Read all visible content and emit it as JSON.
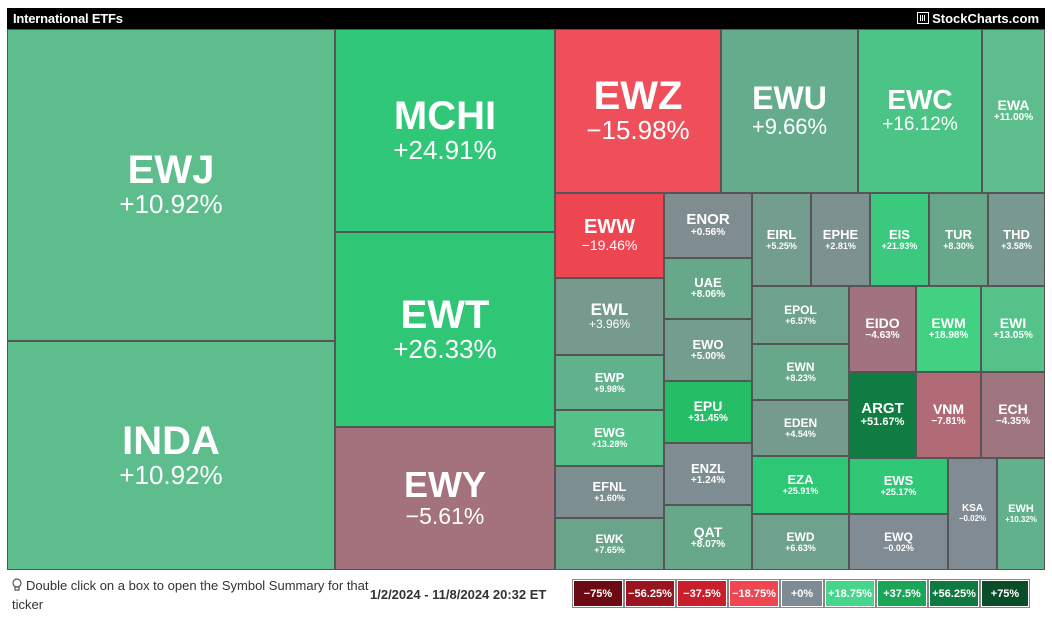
{
  "header": {
    "title": "International ETFs",
    "brand": "StockCharts.com"
  },
  "footer": {
    "hint": "Double click on a box to open the Symbol Summary for that ticker",
    "date_range": "1/2/2024 - 11/8/2024 20:32 ET"
  },
  "legend": [
    {
      "label": "−75%",
      "color": "#6b0a12"
    },
    {
      "label": "−56.25%",
      "color": "#9a1320"
    },
    {
      "label": "−37.5%",
      "color": "#c91f2c"
    },
    {
      "label": "−18.75%",
      "color": "#ef4652"
    },
    {
      "label": "+0%",
      "color": "#7f8b94"
    },
    {
      "label": "+18.75%",
      "color": "#45d68c"
    },
    {
      "label": "+37.5%",
      "color": "#1aa559"
    },
    {
      "label": "+56.25%",
      "color": "#0e7a3f"
    },
    {
      "label": "+75%",
      "color": "#0a4d28"
    }
  ],
  "chart_data": {
    "type": "heatmap",
    "title": "International ETFs",
    "period": "1/2/2024 - 11/8/2024 20:32 ET",
    "items": [
      {
        "symbol": "EWJ",
        "change": "+10.92%",
        "value": 10.92,
        "color": "#5ebd8c"
      },
      {
        "symbol": "INDA",
        "change": "+10.92%",
        "value": 10.92,
        "color": "#5ebd8c"
      },
      {
        "symbol": "MCHI",
        "change": "+24.91%",
        "value": 24.91,
        "color": "#31c779"
      },
      {
        "symbol": "EWT",
        "change": "+26.33%",
        "value": 26.33,
        "color": "#2fc676"
      },
      {
        "symbol": "EWY",
        "change": "−5.61%",
        "value": -5.61,
        "color": "#a4727d"
      },
      {
        "symbol": "EWZ",
        "change": "−15.98%",
        "value": -15.98,
        "color": "#ee4f5b"
      },
      {
        "symbol": "EWU",
        "change": "+9.66%",
        "value": 9.66,
        "color": "#64ac8c"
      },
      {
        "symbol": "EWC",
        "change": "+16.12%",
        "value": 16.12,
        "color": "#4bc486"
      },
      {
        "symbol": "EWA",
        "change": "+11.00%",
        "value": 11.0,
        "color": "#5ebd8c"
      },
      {
        "symbol": "EWW",
        "change": "−19.46%",
        "value": -19.46,
        "color": "#ed4651"
      },
      {
        "symbol": "ENOR",
        "change": "+0.56%",
        "value": 0.56,
        "color": "#7f8c90"
      },
      {
        "symbol": "UAE",
        "change": "+8.06%",
        "value": 8.06,
        "color": "#67a88a"
      },
      {
        "symbol": "EWL",
        "change": "+3.96%",
        "value": 3.96,
        "color": "#779a8f"
      },
      {
        "symbol": "EWO",
        "change": "+5.00%",
        "value": 5.0,
        "color": "#739d8e"
      },
      {
        "symbol": "EWP",
        "change": "+9.98%",
        "value": 9.98,
        "color": "#61b28c"
      },
      {
        "symbol": "EPU",
        "change": "+31.45%",
        "value": 31.45,
        "color": "#25bd66"
      },
      {
        "symbol": "EWG",
        "change": "+13.28%",
        "value": 13.28,
        "color": "#53c188"
      },
      {
        "symbol": "ENZL",
        "change": "+1.24%",
        "value": 1.24,
        "color": "#7e8d91"
      },
      {
        "symbol": "EFNL",
        "change": "+1.60%",
        "value": 1.6,
        "color": "#7d8e91"
      },
      {
        "symbol": "EWK",
        "change": "+7.65%",
        "value": 7.65,
        "color": "#6aa58b"
      },
      {
        "symbol": "QAT",
        "change": "+8.07%",
        "value": 8.07,
        "color": "#67a88a"
      },
      {
        "symbol": "EIRL",
        "change": "+5.25%",
        "value": 5.25,
        "color": "#739d8e"
      },
      {
        "symbol": "EPHE",
        "change": "+2.81%",
        "value": 2.81,
        "color": "#7b9290"
      },
      {
        "symbol": "EIS",
        "change": "+21.93%",
        "value": 21.93,
        "color": "#3ac97e"
      },
      {
        "symbol": "TUR",
        "change": "+8.30%",
        "value": 8.3,
        "color": "#67a88a"
      },
      {
        "symbol": "THD",
        "change": "+3.58%",
        "value": 3.58,
        "color": "#79988f"
      },
      {
        "symbol": "EPOL",
        "change": "+6.57%",
        "value": 6.57,
        "color": "#6ea28c"
      },
      {
        "symbol": "EIDO",
        "change": "−4.63%",
        "value": -4.63,
        "color": "#a1737f"
      },
      {
        "symbol": "EWM",
        "change": "+18.98%",
        "value": 18.98,
        "color": "#42d082"
      },
      {
        "symbol": "EWI",
        "change": "+13.05%",
        "value": 13.05,
        "color": "#54c289"
      },
      {
        "symbol": "EWN",
        "change": "+8.23%",
        "value": 8.23,
        "color": "#67a88a"
      },
      {
        "symbol": "ARGT",
        "change": "+51.67%",
        "value": 51.67,
        "color": "#0f7c42"
      },
      {
        "symbol": "VNM",
        "change": "−7.81%",
        "value": -7.81,
        "color": "#b06b77"
      },
      {
        "symbol": "ECH",
        "change": "−4.35%",
        "value": -4.35,
        "color": "#9f7580"
      },
      {
        "symbol": "EDEN",
        "change": "+4.54%",
        "value": 4.54,
        "color": "#759b8e"
      },
      {
        "symbol": "EZA",
        "change": "+25.91%",
        "value": 25.91,
        "color": "#2ec776"
      },
      {
        "symbol": "EWS",
        "change": "+25.17%",
        "value": 25.17,
        "color": "#30c777"
      },
      {
        "symbol": "KSA",
        "change": "−0.02%",
        "value": -0.02,
        "color": "#808b94"
      },
      {
        "symbol": "EWH",
        "change": "+10.32%",
        "value": 10.32,
        "color": "#60b18c"
      },
      {
        "symbol": "EWD",
        "change": "+6.63%",
        "value": 6.63,
        "color": "#6ea28c"
      },
      {
        "symbol": "EWQ",
        "change": "−0.02%",
        "value": -0.02,
        "color": "#808b94"
      }
    ]
  }
}
